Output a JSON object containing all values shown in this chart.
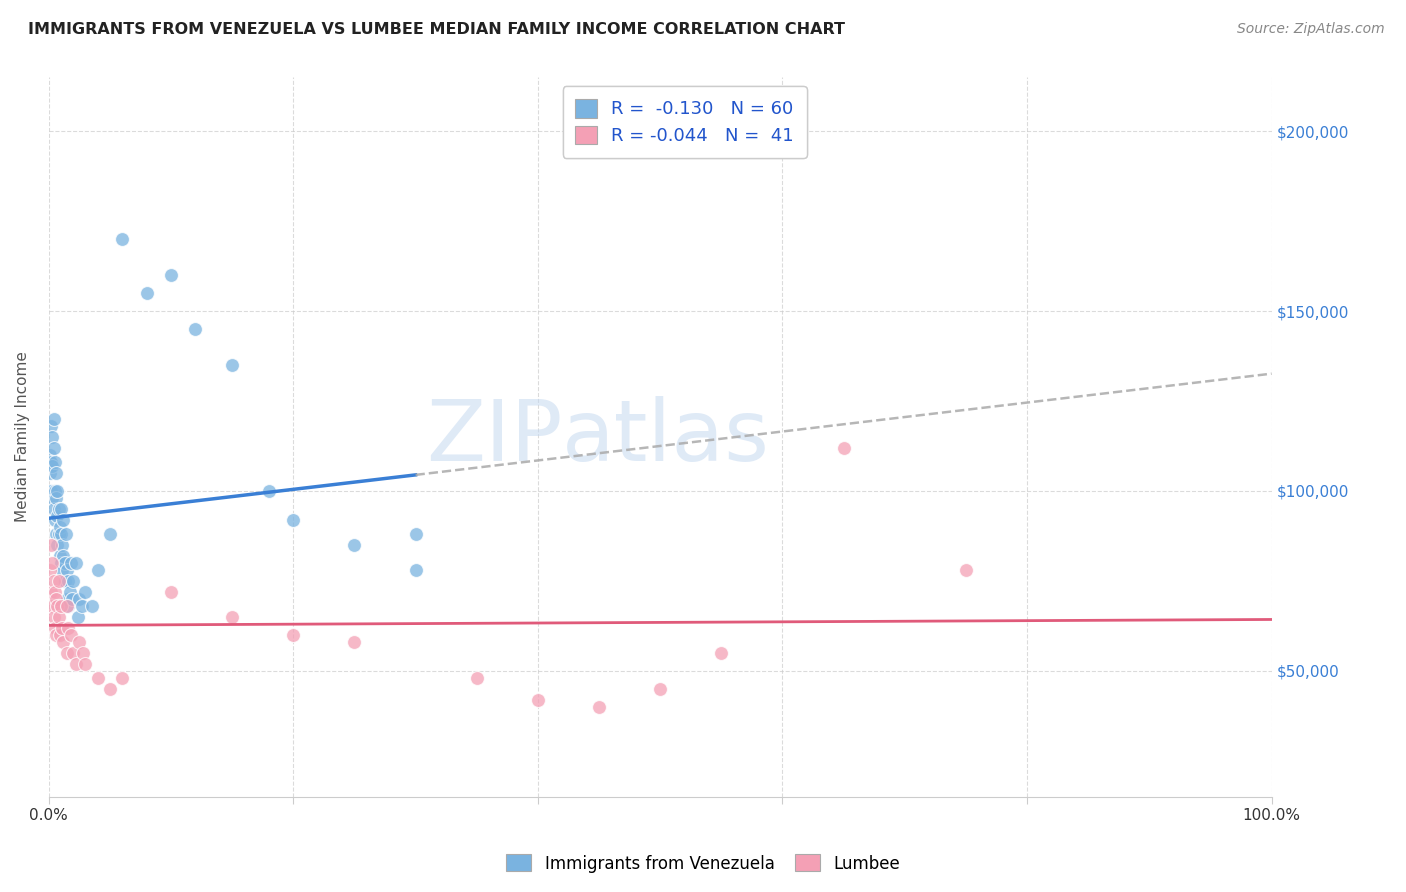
{
  "title": "IMMIGRANTS FROM VENEZUELA VS LUMBEE MEDIAN FAMILY INCOME CORRELATION CHART",
  "source": "Source: ZipAtlas.com",
  "ylabel": "Median Family Income",
  "yticks": [
    50000,
    100000,
    150000,
    200000
  ],
  "ytick_labels": [
    "$50,000",
    "$100,000",
    "$150,000",
    "$200,000"
  ],
  "xlim": [
    0,
    1.0
  ],
  "ylim": [
    15000,
    215000
  ],
  "legend_labels": [
    "Immigrants from Venezuela",
    "Lumbee"
  ],
  "legend_R": [
    "-0.130",
    "-0.044"
  ],
  "legend_N": [
    "60",
    "41"
  ],
  "blue_dot_color": "#7ab3e0",
  "pink_dot_color": "#f4a0b5",
  "blue_line_color": "#3a7fd5",
  "pink_line_color": "#e05a7a",
  "dashed_color": "#aaaaaa",
  "watermark_color": "#c5d9f0",
  "blue_line_end_x": 0.3,
  "blue_points_x": [
    0.001,
    0.001,
    0.002,
    0.002,
    0.002,
    0.003,
    0.003,
    0.003,
    0.004,
    0.004,
    0.004,
    0.005,
    0.005,
    0.005,
    0.006,
    0.006,
    0.006,
    0.007,
    0.007,
    0.007,
    0.008,
    0.008,
    0.009,
    0.009,
    0.01,
    0.01,
    0.01,
    0.011,
    0.011,
    0.012,
    0.012,
    0.013,
    0.013,
    0.014,
    0.015,
    0.015,
    0.016,
    0.016,
    0.017,
    0.018,
    0.019,
    0.02,
    0.022,
    0.024,
    0.025,
    0.027,
    0.03,
    0.035,
    0.04,
    0.05,
    0.06,
    0.08,
    0.1,
    0.12,
    0.15,
    0.18,
    0.2,
    0.25,
    0.3,
    0.3
  ],
  "blue_points_y": [
    110000,
    105000,
    118000,
    108000,
    100000,
    115000,
    107000,
    98000,
    120000,
    112000,
    95000,
    108000,
    100000,
    92000,
    105000,
    98000,
    88000,
    100000,
    93000,
    85000,
    95000,
    88000,
    90000,
    82000,
    88000,
    80000,
    95000,
    85000,
    78000,
    82000,
    92000,
    80000,
    75000,
    88000,
    78000,
    70000,
    75000,
    68000,
    72000,
    80000,
    70000,
    75000,
    80000,
    65000,
    70000,
    68000,
    72000,
    68000,
    78000,
    88000,
    170000,
    155000,
    160000,
    145000,
    135000,
    100000,
    92000,
    85000,
    78000,
    88000
  ],
  "pink_points_x": [
    0.001,
    0.002,
    0.002,
    0.003,
    0.003,
    0.004,
    0.004,
    0.005,
    0.005,
    0.006,
    0.006,
    0.007,
    0.008,
    0.008,
    0.009,
    0.01,
    0.011,
    0.012,
    0.015,
    0.015,
    0.016,
    0.018,
    0.02,
    0.022,
    0.025,
    0.028,
    0.03,
    0.04,
    0.05,
    0.06,
    0.1,
    0.15,
    0.2,
    0.25,
    0.35,
    0.4,
    0.45,
    0.5,
    0.55,
    0.65,
    0.75
  ],
  "pink_points_y": [
    78000,
    85000,
    72000,
    80000,
    68000,
    75000,
    65000,
    72000,
    62000,
    70000,
    60000,
    68000,
    75000,
    65000,
    60000,
    68000,
    62000,
    58000,
    68000,
    55000,
    62000,
    60000,
    55000,
    52000,
    58000,
    55000,
    52000,
    48000,
    45000,
    48000,
    72000,
    65000,
    60000,
    58000,
    48000,
    42000,
    40000,
    45000,
    55000,
    112000,
    78000
  ]
}
